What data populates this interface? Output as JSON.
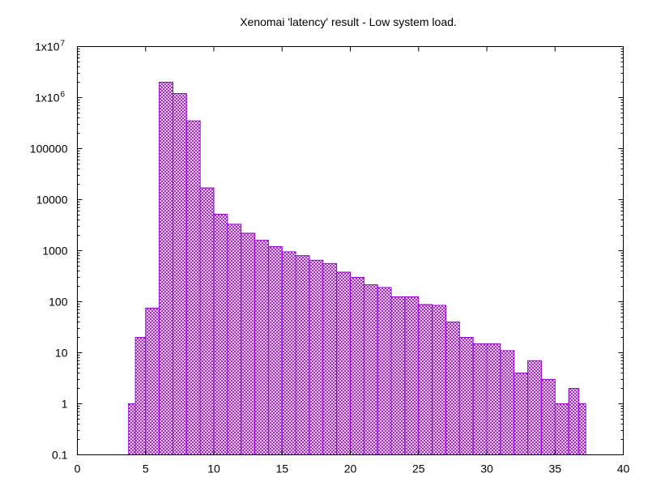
{
  "chart_data": {
    "type": "bar",
    "title": "Xenomai 'latency' result - Low system load.",
    "xlabel": "",
    "ylabel": "",
    "xlim": [
      0,
      40
    ],
    "ylim": [
      0.1,
      10000000
    ],
    "y_scale": "log",
    "grid": false,
    "bar_color": "#9400d3",
    "fill": "crosshatch",
    "x_ticks": [
      0,
      5,
      10,
      15,
      20,
      25,
      30,
      35,
      40
    ],
    "y_ticks": [
      {
        "value": 0.1,
        "label": "0.1"
      },
      {
        "value": 1,
        "label": "1"
      },
      {
        "value": 10,
        "label": "10"
      },
      {
        "value": 100,
        "label": "100"
      },
      {
        "value": 1000,
        "label": "1000"
      },
      {
        "value": 10000,
        "label": "10000"
      },
      {
        "value": 100000,
        "label": "100000"
      },
      {
        "value": 1000000,
        "label": "1x10",
        "exp": "6"
      },
      {
        "value": 10000000,
        "label": "1x10",
        "exp": "7"
      }
    ],
    "bins": [
      {
        "x0": 3.75,
        "x1": 4.25,
        "value": 1
      },
      {
        "x0": 4.25,
        "x1": 5.0,
        "value": 20
      },
      {
        "x0": 5.0,
        "x1": 6.0,
        "value": 75
      },
      {
        "x0": 6.0,
        "x1": 7.0,
        "value": 2000000
      },
      {
        "x0": 7.0,
        "x1": 8.0,
        "value": 1200000
      },
      {
        "x0": 8.0,
        "x1": 9.0,
        "value": 350000
      },
      {
        "x0": 9.0,
        "x1": 10.0,
        "value": 17000
      },
      {
        "x0": 10.0,
        "x1": 11.0,
        "value": 5200
      },
      {
        "x0": 11.0,
        "x1": 12.0,
        "value": 3300
      },
      {
        "x0": 12.0,
        "x1": 13.0,
        "value": 2200
      },
      {
        "x0": 13.0,
        "x1": 14.0,
        "value": 1600
      },
      {
        "x0": 14.0,
        "x1": 15.0,
        "value": 1200
      },
      {
        "x0": 15.0,
        "x1": 16.0,
        "value": 950
      },
      {
        "x0": 16.0,
        "x1": 17.0,
        "value": 800
      },
      {
        "x0": 17.0,
        "x1": 18.0,
        "value": 650
      },
      {
        "x0": 18.0,
        "x1": 19.0,
        "value": 560
      },
      {
        "x0": 19.0,
        "x1": 20.0,
        "value": 380
      },
      {
        "x0": 20.0,
        "x1": 21.0,
        "value": 300
      },
      {
        "x0": 21.0,
        "x1": 22.0,
        "value": 215
      },
      {
        "x0": 22.0,
        "x1": 23.0,
        "value": 190
      },
      {
        "x0": 23.0,
        "x1": 24.0,
        "value": 125
      },
      {
        "x0": 24.0,
        "x1": 25.0,
        "value": 125
      },
      {
        "x0": 25.0,
        "x1": 26.0,
        "value": 88
      },
      {
        "x0": 26.0,
        "x1": 27.0,
        "value": 85
      },
      {
        "x0": 27.0,
        "x1": 28.0,
        "value": 40
      },
      {
        "x0": 28.0,
        "x1": 29.0,
        "value": 20
      },
      {
        "x0": 29.0,
        "x1": 30.0,
        "value": 15
      },
      {
        "x0": 30.0,
        "x1": 31.0,
        "value": 15
      },
      {
        "x0": 31.0,
        "x1": 32.0,
        "value": 11
      },
      {
        "x0": 32.0,
        "x1": 33.0,
        "value": 4
      },
      {
        "x0": 33.0,
        "x1": 34.0,
        "value": 7
      },
      {
        "x0": 34.0,
        "x1": 35.0,
        "value": 3
      },
      {
        "x0": 35.0,
        "x1": 36.0,
        "value": 1
      },
      {
        "x0": 36.0,
        "x1": 36.75,
        "value": 2
      },
      {
        "x0": 36.75,
        "x1": 37.25,
        "value": 1
      }
    ]
  }
}
